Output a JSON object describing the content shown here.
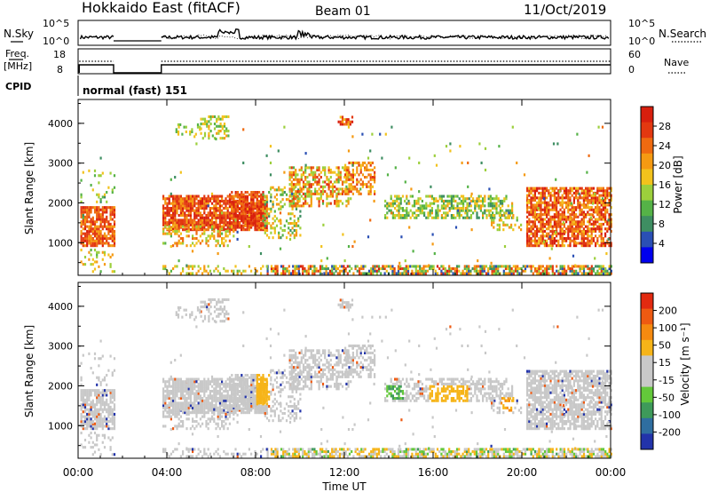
{
  "header": {
    "title": "Hokkaido East (fitACF)",
    "beam": "Beam 01",
    "date": "11/Oct/2019"
  },
  "top_panels": {
    "nsky_label": "N.Sky",
    "nsky_ticks": [
      "10^5",
      "10^0"
    ],
    "nsearch_label": "N.Search",
    "nsearch_ticks": [
      "10^5",
      "10^0"
    ],
    "freq_label_1": "Freq.",
    "freq_label_2": "[MHz]",
    "freq_ticks": [
      "18",
      "8"
    ],
    "nave_label": "Nave",
    "nave_ticks": [
      "60",
      "0"
    ],
    "cpid_label": "CPID",
    "cpid_value": "normal (fast) 151"
  },
  "chart_data": [
    {
      "type": "heatmap",
      "name": "power",
      "ylabel": "Slant Range [km]",
      "yticks": [
        "4000",
        "3000",
        "2000",
        "1000"
      ],
      "ylim": [
        180,
        4600
      ],
      "colorbar_label": "Power [dB]",
      "colorbar_ticks": [
        "28",
        "24",
        "20",
        "16",
        "12",
        "8",
        "4"
      ],
      "colorbar_colors": [
        "#0000ee",
        "#2a4fb4",
        "#3e8e62",
        "#55b247",
        "#9ccf3c",
        "#f2c21c",
        "#f59a12",
        "#ef6a10",
        "#e33810",
        "#d81f0e"
      ],
      "data_gap_hours": [
        1.6,
        3.75
      ]
    },
    {
      "type": "heatmap",
      "name": "velocity",
      "ylabel": "Slant Range [km]",
      "yticks": [
        "4000",
        "3000",
        "2000",
        "1000"
      ],
      "ylim": [
        180,
        4600
      ],
      "colorbar_label": "Velocity [m s⁻¹]",
      "colorbar_ticks": [
        "200",
        "100",
        "50",
        "15",
        "-15",
        "-50",
        "-100",
        "-200"
      ],
      "colorbar_colors": [
        "#2233aa",
        "#2f6ea0",
        "#3e9a5a",
        "#63c83a",
        "#c8c8c8",
        "#c8c8c8",
        "#f6b418",
        "#f58a10",
        "#ee5a12",
        "#e22a10"
      ],
      "data_gap_hours": [
        1.6,
        3.75
      ]
    }
  ],
  "xaxis": {
    "label": "Time UT",
    "ticks": [
      "00:00",
      "04:00",
      "08:00",
      "12:00",
      "16:00",
      "20:00",
      "00:00"
    ]
  }
}
